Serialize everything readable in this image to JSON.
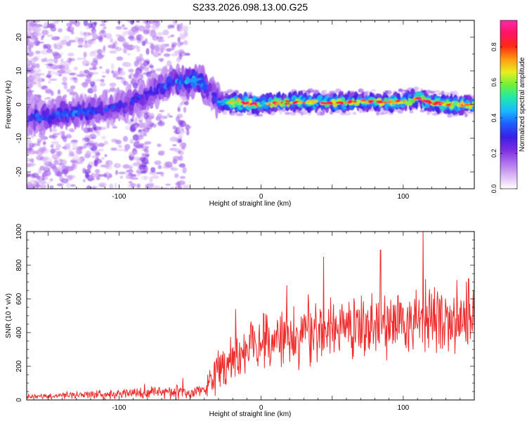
{
  "figure_title": "S233.2026.098.13.00.G25",
  "colors": {
    "snr_line": "#ee2b2b",
    "axis": "#000000",
    "colorscale": [
      "#ffffff",
      "#d9b8f5",
      "#b070ee",
      "#7b2fe0",
      "#3a1fe6",
      "#1f5cff",
      "#19b8ff",
      "#1fe8b0",
      "#6ef03a",
      "#e8ef1e",
      "#ff9a12",
      "#ff2a14",
      "#ff1464",
      "#ff2aa8"
    ]
  },
  "chart_data": [
    {
      "type": "heatmap",
      "title": "S233.2026.098.13.00.G25",
      "xlabel": "Height of straight line (km)",
      "ylabel": "Frequency (Hz)",
      "xlim": [
        -165,
        150
      ],
      "ylim": [
        -25,
        25
      ],
      "x_ticks": [
        -100,
        0,
        100
      ],
      "x_tick_labels": [
        "-100",
        "0",
        "100"
      ],
      "y_ticks": [
        -20,
        -10,
        0,
        10,
        20
      ],
      "y_tick_labels": [
        "-20",
        "-10",
        "0",
        "10",
        "20"
      ],
      "colorbar": {
        "label": "Normalized spectral amplitude",
        "range": [
          0,
          0.95
        ],
        "ticks": [
          0.0,
          0.2,
          0.4,
          0.6,
          0.8
        ],
        "tick_labels": [
          "0.0",
          "0.2",
          "0.4",
          "0.6",
          "0.8"
        ]
      },
      "ridge": {
        "x": [
          -165,
          -150,
          -130,
          -110,
          -95,
          -85,
          -75,
          -65,
          -55,
          -48,
          -42,
          -36,
          -32,
          -30,
          -25,
          -10,
          0,
          10,
          30,
          50,
          70,
          90,
          105,
          110,
          120,
          135,
          150
        ],
        "frequency": [
          -4,
          -3.5,
          -2.5,
          -1.5,
          0,
          2,
          4,
          6,
          7,
          7.5,
          6.5,
          4,
          2,
          0.5,
          0.5,
          0.5,
          0,
          0.5,
          0.8,
          0.5,
          1,
          0.5,
          1.2,
          1.8,
          0.5,
          0,
          0
        ],
        "peak_amplitude": [
          0.3,
          0.35,
          0.35,
          0.3,
          0.3,
          0.3,
          0.3,
          0.35,
          0.4,
          0.45,
          0.4,
          0.35,
          0.3,
          0.4,
          0.6,
          0.85,
          0.6,
          0.75,
          0.7,
          0.75,
          0.65,
          0.75,
          0.65,
          0.8,
          0.75,
          0.8,
          0.7
        ]
      }
    },
    {
      "type": "line",
      "xlabel": "Height of straight line (km)",
      "ylabel": "SNR (10 * v/v)",
      "xlim": [
        -165,
        150
      ],
      "ylim": [
        0,
        1000
      ],
      "x_ticks": [
        -100,
        0,
        100
      ],
      "x_tick_labels": [
        "-100",
        "0",
        "100"
      ],
      "y_ticks": [
        0,
        200,
        400,
        600,
        800,
        1000
      ],
      "y_tick_labels": [
        "0",
        "200",
        "400",
        "600",
        "800",
        "1000"
      ],
      "series": [
        {
          "name": "SNR",
          "envelope_x": [
            -165,
            -120,
            -80,
            -60,
            -50,
            -40,
            -35,
            -30,
            -20,
            -10,
            0,
            10,
            20,
            30,
            40,
            50,
            60,
            70,
            80,
            90,
            100,
            110,
            120,
            130,
            140,
            150
          ],
          "envelope_mean": [
            20,
            30,
            40,
            50,
            40,
            60,
            110,
            190,
            250,
            300,
            330,
            360,
            380,
            400,
            420,
            430,
            440,
            450,
            460,
            470,
            470,
            480,
            470,
            470,
            480,
            490
          ],
          "envelope_spread": [
            15,
            25,
            35,
            45,
            35,
            50,
            90,
            130,
            150,
            160,
            170,
            180,
            190,
            200,
            210,
            210,
            210,
            220,
            210,
            210,
            210,
            220,
            210,
            210,
            210,
            210
          ],
          "peaks": [
            {
              "x": -82,
              "y": 95
            },
            {
              "x": -55,
              "y": 130
            },
            {
              "x": -18,
              "y": 540
            },
            {
              "x": 18,
              "y": 680
            },
            {
              "x": 44,
              "y": 850
            },
            {
              "x": 84,
              "y": 890
            },
            {
              "x": 114,
              "y": 1010
            },
            {
              "x": 146,
              "y": 720
            }
          ]
        }
      ]
    }
  ]
}
